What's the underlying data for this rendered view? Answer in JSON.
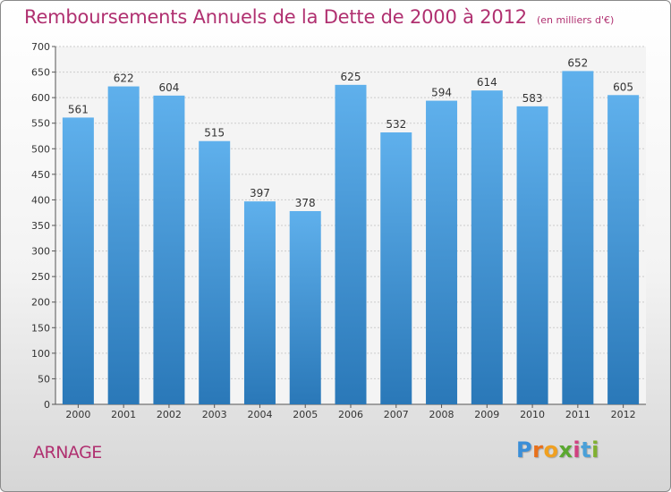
{
  "header": {
    "title": "Remboursements Annuels de la Dette de 2000 à 2012",
    "subtitle": "(en milliers d'€)"
  },
  "footer": {
    "place": "ARNAGE",
    "logo_text": "Proxiti",
    "logo_colors": [
      "#3a8ed8",
      "#e8701a",
      "#f0a020",
      "#5aa830",
      "#d04080",
      "#4aa0d8",
      "#80b030"
    ]
  },
  "colors": {
    "title": "#b03070",
    "bar_light": "#5fb0ec",
    "bar_dark": "#2a78b8",
    "grid": "#cccccc",
    "axis": "#555555"
  },
  "chart_data": {
    "type": "bar",
    "categories": [
      "2000",
      "2001",
      "2002",
      "2003",
      "2004",
      "2005",
      "2006",
      "2007",
      "2008",
      "2009",
      "2010",
      "2011",
      "2012"
    ],
    "values": [
      561,
      622,
      604,
      515,
      397,
      378,
      625,
      532,
      594,
      614,
      583,
      652,
      605
    ],
    "ylim": [
      0,
      700
    ],
    "yticks": [
      0,
      50,
      100,
      150,
      200,
      250,
      300,
      350,
      400,
      450,
      500,
      550,
      600,
      650,
      700
    ],
    "grid": true,
    "data_labels": true
  }
}
